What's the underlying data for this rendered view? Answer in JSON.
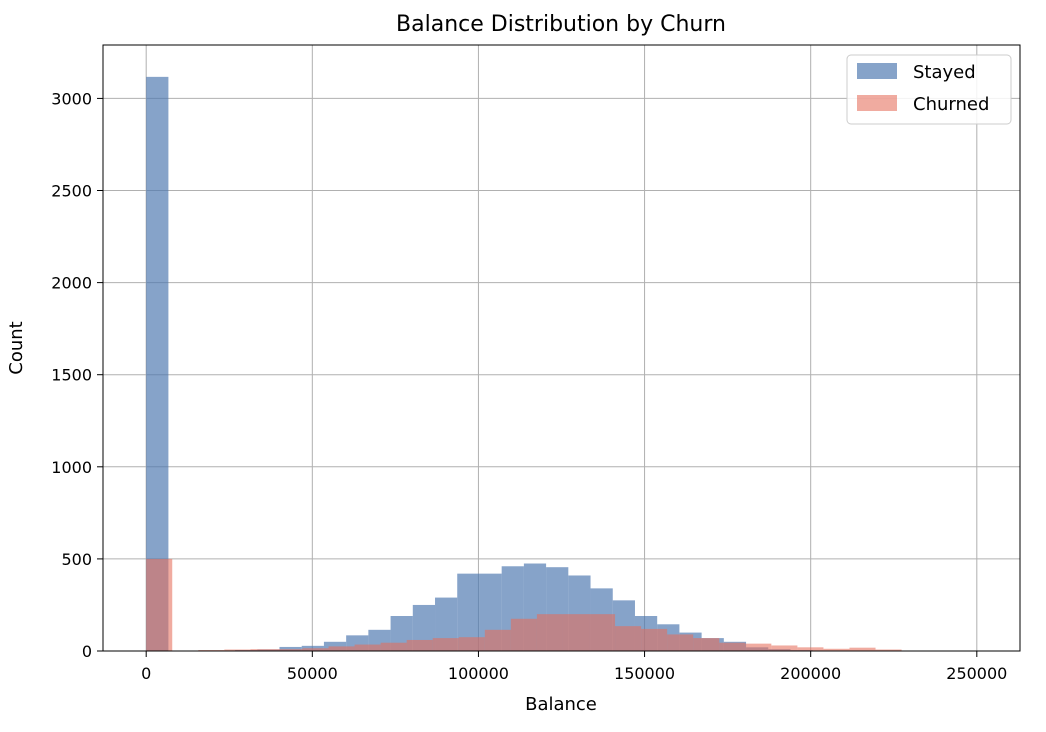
{
  "chart_data": {
    "type": "bar",
    "title": "Balance Distribution by Churn",
    "xlabel": "Balance",
    "ylabel": "Count",
    "xlim": [
      -13000,
      263000
    ],
    "ylim": [
      0,
      3290
    ],
    "x_ticks": [
      0,
      50000,
      100000,
      150000,
      200000,
      250000
    ],
    "x_tick_labels": [
      "0",
      "50000",
      "100000",
      "150000",
      "200000",
      "250000"
    ],
    "y_ticks": [
      0,
      500,
      1000,
      1500,
      2000,
      2500,
      3000
    ],
    "y_tick_labels": [
      "0",
      "500",
      "1000",
      "1500",
      "2000",
      "2500",
      "3000"
    ],
    "grid": true,
    "legend_position": "top-right",
    "series": [
      {
        "name": "Stayed",
        "color": "#4c78b0",
        "bin_start": 0,
        "bin_width": 6687,
        "counts": [
          3117,
          0,
          0,
          2,
          5,
          8,
          22,
          28,
          50,
          85,
          115,
          190,
          250,
          290,
          420,
          420,
          460,
          475,
          455,
          410,
          340,
          275,
          190,
          145,
          100,
          70,
          50,
          20,
          10,
          5,
          2,
          0,
          0,
          0,
          0,
          0,
          0,
          0
        ]
      },
      {
        "name": "Churned",
        "color": "#e66f5c",
        "bin_start": 0,
        "bin_width": 7840,
        "counts": [
          500,
          0,
          5,
          8,
          10,
          10,
          15,
          25,
          35,
          45,
          60,
          70,
          75,
          115,
          175,
          200,
          200,
          200,
          135,
          120,
          90,
          70,
          45,
          40,
          30,
          20,
          12,
          18,
          8,
          2,
          1,
          0
        ]
      }
    ]
  }
}
